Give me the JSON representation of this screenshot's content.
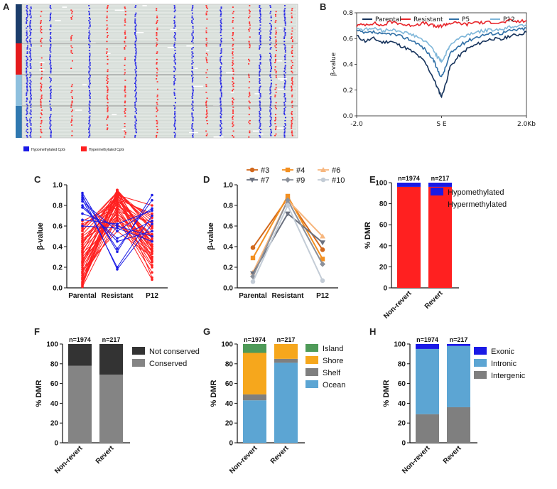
{
  "colors": {
    "parental": "#15325b",
    "resistant": "#e8252a",
    "p5": "#2f6fa6",
    "p12": "#7eb6d9",
    "hypo": "#1a1ae6",
    "hyper": "#ff2020",
    "c3": "#d2691e",
    "c4": "#f39021",
    "c6": "#f7b77f",
    "c7": "#6b717f",
    "c9": "#8b909a",
    "c10": "#c3ccd6",
    "gray_dark": "#333333",
    "gray": "#848484",
    "island": "#4e9a58",
    "shore": "#f6a71c",
    "shelf": "#7f7f7f",
    "ocean": "#5ca5d3",
    "trackA1": "#1b3d6b",
    "trackA2": "#e41a1c",
    "trackA3": "#8ec0de",
    "trackA4": "#2f78b0"
  },
  "panels": {
    "A": {
      "letter": "A",
      "legend": [
        {
          "label": "Hypomethylated CpG",
          "color_key": "hypo"
        },
        {
          "label": "Hypermethylated CpG",
          "color_key": "hyper"
        }
      ]
    },
    "B": {
      "letter": "B"
    },
    "C": {
      "letter": "C"
    },
    "D": {
      "letter": "D"
    },
    "E": {
      "letter": "E"
    },
    "F": {
      "letter": "F"
    },
    "G": {
      "letter": "G"
    },
    "H": {
      "letter": "H"
    }
  },
  "chart_data": [
    {
      "id": "B",
      "type": "line",
      "ylabel": "β-value",
      "ylim": [
        0.0,
        0.8
      ],
      "yticks": [
        "0.0",
        "0.2",
        "0.4",
        "0.6",
        "0.8"
      ],
      "xticks": [
        "-2.0",
        "S E",
        "2.0Kb"
      ],
      "x": [
        -2.0,
        -1.8,
        -1.6,
        -1.4,
        -1.2,
        -1.0,
        -0.8,
        -0.6,
        -0.4,
        -0.2,
        -0.1,
        0.0,
        0.1,
        0.2,
        0.4,
        0.6,
        0.8,
        1.0,
        1.2,
        1.4,
        1.6,
        1.8,
        2.0
      ],
      "series": [
        {
          "name": "Parental",
          "color_key": "parental",
          "values": [
            0.62,
            0.58,
            0.6,
            0.57,
            0.58,
            0.55,
            0.52,
            0.48,
            0.42,
            0.3,
            0.22,
            0.15,
            0.25,
            0.38,
            0.46,
            0.52,
            0.55,
            0.58,
            0.6,
            0.59,
            0.62,
            0.63,
            0.65
          ]
        },
        {
          "name": "Resistant",
          "color_key": "resistant",
          "values": [
            0.7,
            0.71,
            0.72,
            0.7,
            0.73,
            0.72,
            0.7,
            0.71,
            0.72,
            0.7,
            0.69,
            0.7,
            0.71,
            0.72,
            0.72,
            0.71,
            0.73,
            0.72,
            0.73,
            0.72,
            0.74,
            0.73,
            0.74
          ]
        },
        {
          "name": "P5",
          "color_key": "p5",
          "values": [
            0.66,
            0.64,
            0.65,
            0.63,
            0.64,
            0.62,
            0.6,
            0.57,
            0.52,
            0.44,
            0.36,
            0.3,
            0.38,
            0.48,
            0.54,
            0.58,
            0.61,
            0.63,
            0.64,
            0.64,
            0.66,
            0.67,
            0.68
          ]
        },
        {
          "name": "P12",
          "color_key": "p12",
          "values": [
            0.68,
            0.67,
            0.68,
            0.66,
            0.67,
            0.66,
            0.64,
            0.62,
            0.58,
            0.52,
            0.46,
            0.42,
            0.48,
            0.55,
            0.6,
            0.63,
            0.65,
            0.66,
            0.67,
            0.67,
            0.69,
            0.7,
            0.71
          ]
        }
      ]
    },
    {
      "id": "C",
      "type": "line",
      "ylabel": "β-value",
      "ylim": [
        0.0,
        1.0
      ],
      "yticks": [
        "0.0",
        "0.2",
        "0.4",
        "0.6",
        "0.8",
        "1.0"
      ],
      "categories": [
        "Parental",
        "Resistant",
        "P12"
      ],
      "series": [
        {
          "name": "Hypomethylated",
          "color_key": "hypo",
          "values_sets": [
            [
              0.92,
              0.35,
              0.9
            ],
            [
              0.9,
              0.18,
              0.62
            ],
            [
              0.88,
              0.38,
              0.85
            ],
            [
              0.86,
              0.2,
              0.7
            ],
            [
              0.8,
              0.45,
              0.55
            ],
            [
              0.84,
              0.55,
              0.77
            ],
            [
              0.78,
              0.48,
              0.65
            ],
            [
              0.72,
              0.6,
              0.5
            ],
            [
              0.66,
              0.62,
              0.75
            ],
            [
              0.6,
              0.58,
              0.45
            ]
          ]
        },
        {
          "name": "Hypermethylated",
          "color_key": "hyper",
          "values_sets": [
            [
              0.02,
              0.95,
              0.35
            ],
            [
              0.05,
              0.9,
              0.4
            ],
            [
              0.1,
              0.85,
              0.5
            ],
            [
              0.15,
              0.92,
              0.62
            ],
            [
              0.2,
              0.78,
              0.3
            ],
            [
              0.25,
              0.88,
              0.7
            ],
            [
              0.3,
              0.7,
              0.2
            ],
            [
              0.35,
              0.95,
              0.55
            ],
            [
              0.4,
              0.82,
              0.45
            ],
            [
              0.45,
              0.9,
              0.8
            ],
            [
              0.5,
              0.75,
              0.35
            ],
            [
              0.55,
              0.93,
              0.65
            ],
            [
              0.6,
              0.85,
              0.25
            ],
            [
              0.65,
              0.8,
              0.6
            ],
            [
              0.08,
              0.7,
              0.15
            ],
            [
              0.12,
              0.6,
              0.45
            ],
            [
              0.18,
              0.55,
              0.3
            ],
            [
              0.22,
              0.93,
              0.1
            ],
            [
              0.28,
              0.65,
              0.5
            ],
            [
              0.32,
              0.86,
              0.72
            ],
            [
              0.38,
              0.72,
              0.4
            ],
            [
              0.42,
              0.94,
              0.58
            ],
            [
              0.48,
              0.66,
              0.28
            ],
            [
              0.52,
              0.87,
              0.48
            ],
            [
              0.04,
              0.8,
              0.52
            ],
            [
              0.06,
              0.94,
              0.38
            ],
            [
              0.14,
              0.76,
              0.22
            ],
            [
              0.26,
              0.9,
              0.42
            ],
            [
              0.34,
              0.62,
              0.33
            ],
            [
              0.44,
              0.84,
              0.6
            ],
            [
              0.58,
              0.93,
              0.42
            ],
            [
              0.62,
              0.78,
              0.5
            ],
            [
              0.01,
              0.68,
              0.08
            ],
            [
              0.03,
              0.88,
              0.3
            ],
            [
              0.09,
              0.95,
              0.58
            ],
            [
              0.16,
              0.83,
              0.36
            ],
            [
              0.24,
              0.74,
              0.64
            ],
            [
              0.36,
              0.91,
              0.26
            ],
            [
              0.46,
              0.69,
              0.46
            ],
            [
              0.56,
              0.89,
              0.68
            ]
          ]
        }
      ]
    },
    {
      "id": "D",
      "type": "line",
      "ylabel": "β-value",
      "ylim": [
        0.0,
        1.0
      ],
      "yticks": [
        "0.0",
        "0.2",
        "0.4",
        "0.6",
        "0.8",
        "1.0"
      ],
      "categories": [
        "Parental",
        "Resistant",
        "P12"
      ],
      "series": [
        {
          "name": "#3",
          "color_key": "c3",
          "marker": "circle",
          "values": [
            0.39,
            0.87,
            0.37
          ]
        },
        {
          "name": "#4",
          "color_key": "c4",
          "marker": "square",
          "values": [
            0.29,
            0.89,
            0.28
          ]
        },
        {
          "name": "#6",
          "color_key": "c6",
          "marker": "triangle-up",
          "values": [
            0.15,
            0.85,
            0.5
          ]
        },
        {
          "name": "#7",
          "color_key": "c7",
          "marker": "triangle-down",
          "values": [
            0.14,
            0.72,
            0.44
          ]
        },
        {
          "name": "#9",
          "color_key": "c9",
          "marker": "diamond",
          "values": [
            0.11,
            0.85,
            0.23
          ]
        },
        {
          "name": "#10",
          "color_key": "c10",
          "marker": "circle",
          "values": [
            0.06,
            0.8,
            0.07
          ]
        }
      ]
    },
    {
      "id": "E",
      "type": "bar",
      "ylabel": "% DMR",
      "ylim": [
        0,
        100
      ],
      "yticks": [
        "0",
        "20",
        "40",
        "60",
        "80",
        "100"
      ],
      "categories": [
        "Non-revert",
        "Revert"
      ],
      "n_labels": [
        "n=1974",
        "n=217"
      ],
      "series": [
        {
          "name": "Hypermethylated",
          "color_key": "hyper",
          "values": [
            96,
            96
          ]
        },
        {
          "name": "Hypomethylated",
          "color_key": "hypo",
          "values": [
            4,
            4
          ]
        }
      ],
      "legend_order": [
        "Hypomethylated",
        "Hypermethylated"
      ]
    },
    {
      "id": "F",
      "type": "bar",
      "ylabel": "% DMR",
      "ylim": [
        0,
        100
      ],
      "yticks": [
        "0",
        "20",
        "40",
        "60",
        "80",
        "100"
      ],
      "categories": [
        "Non-revert",
        "Revert"
      ],
      "n_labels": [
        "n=1974",
        "n=217"
      ],
      "series": [
        {
          "name": "Conserved",
          "color_key": "gray",
          "values": [
            78,
            69
          ]
        },
        {
          "name": "Not conserved",
          "color_key": "gray_dark",
          "values": [
            22,
            31
          ]
        }
      ],
      "legend_order": [
        "Not conserved",
        "Conserved"
      ]
    },
    {
      "id": "G",
      "type": "bar",
      "ylabel": "% DMR",
      "ylim": [
        0,
        100
      ],
      "yticks": [
        "0",
        "20",
        "40",
        "60",
        "80",
        "100"
      ],
      "categories": [
        "Non-revert",
        "Revert"
      ],
      "n_labels": [
        "n=1974",
        "n=217"
      ],
      "series": [
        {
          "name": "Ocean",
          "color_key": "ocean",
          "values": [
            43,
            81
          ]
        },
        {
          "name": "Shelf",
          "color_key": "shelf",
          "values": [
            6,
            4
          ]
        },
        {
          "name": "Shore",
          "color_key": "shore",
          "values": [
            42,
            15
          ]
        },
        {
          "name": "Island",
          "color_key": "island",
          "values": [
            9,
            0
          ]
        }
      ],
      "legend_order": [
        "Island",
        "Shore",
        "Shelf",
        "Ocean"
      ]
    },
    {
      "id": "H",
      "type": "bar",
      "ylabel": "% DMR",
      "ylim": [
        0,
        100
      ],
      "yticks": [
        "0",
        "20",
        "40",
        "60",
        "80",
        "100"
      ],
      "categories": [
        "Non-revert",
        "Revert"
      ],
      "n_labels": [
        "n=1974",
        "n=217"
      ],
      "series": [
        {
          "name": "Intergenic",
          "color_key": "shelf",
          "values": [
            29,
            36
          ]
        },
        {
          "name": "Intronic",
          "color_key": "ocean",
          "values": [
            66,
            62
          ]
        },
        {
          "name": "Exonic",
          "color_key": "hypo",
          "values": [
            5,
            2
          ]
        }
      ],
      "legend_order": [
        "Exonic",
        "Intronic",
        "Intergenic"
      ]
    }
  ]
}
